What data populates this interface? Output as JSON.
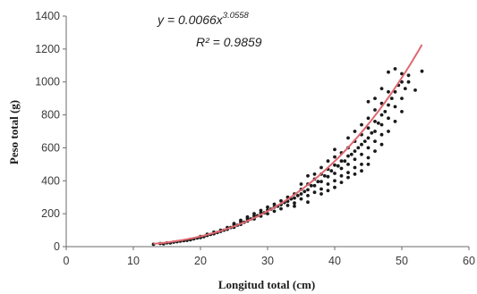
{
  "chart_data": {
    "type": "scatter",
    "xlabel": "Longitud total (cm)",
    "ylabel": "Peso total (g)",
    "xlim": [
      0,
      60
    ],
    "ylim": [
      0,
      1400
    ],
    "xticks": [
      "0",
      "10",
      "20",
      "30",
      "40",
      "50",
      "60"
    ],
    "yticks": [
      "0",
      "200",
      "400",
      "600",
      "800",
      "1000",
      "1200",
      "1400"
    ],
    "grid": false,
    "legend": "none",
    "annotations": {
      "equation_prefix": "y = 0.0066x",
      "equation_exponent": "3.0558",
      "r_squared": "R² = 0.9859"
    },
    "fit": {
      "type": "power",
      "a": 0.0066,
      "b": 3.0558,
      "x_range": [
        13,
        53
      ],
      "color": "#e06870"
    },
    "points_color": "#1a1a1a",
    "points": [
      [
        13,
        14
      ],
      [
        14,
        19
      ],
      [
        14.5,
        17
      ],
      [
        15,
        23
      ],
      [
        15.5,
        22
      ],
      [
        16,
        27
      ],
      [
        16.5,
        30
      ],
      [
        17,
        33
      ],
      [
        17.5,
        36
      ],
      [
        18,
        38
      ],
      [
        18.5,
        42
      ],
      [
        19,
        47
      ],
      [
        19.5,
        52
      ],
      [
        20,
        55
      ],
      [
        20,
        62
      ],
      [
        20.5,
        60
      ],
      [
        21,
        68
      ],
      [
        21,
        75
      ],
      [
        21.5,
        74
      ],
      [
        22,
        78
      ],
      [
        22,
        88
      ],
      [
        22.5,
        86
      ],
      [
        23,
        92
      ],
      [
        23,
        100
      ],
      [
        23.5,
        100
      ],
      [
        24,
        105
      ],
      [
        24,
        116
      ],
      [
        24.5,
        116
      ],
      [
        25,
        118
      ],
      [
        25,
        132
      ],
      [
        25,
        140
      ],
      [
        25.5,
        130
      ],
      [
        26,
        135
      ],
      [
        26,
        150
      ],
      [
        26,
        160
      ],
      [
        26.5,
        148
      ],
      [
        27,
        155
      ],
      [
        27,
        170
      ],
      [
        27,
        180
      ],
      [
        27.5,
        168
      ],
      [
        28,
        168
      ],
      [
        28,
        186
      ],
      [
        28,
        200
      ],
      [
        28.5,
        188
      ],
      [
        29,
        185
      ],
      [
        29,
        205
      ],
      [
        29,
        220
      ],
      [
        29.5,
        205
      ],
      [
        30,
        200
      ],
      [
        30,
        222
      ],
      [
        30,
        240
      ],
      [
        30.5,
        228
      ],
      [
        31,
        215
      ],
      [
        31,
        240
      ],
      [
        31,
        258
      ],
      [
        31.5,
        245
      ],
      [
        32,
        230
      ],
      [
        32,
        255
      ],
      [
        32,
        278
      ],
      [
        32.5,
        268
      ],
      [
        33,
        250
      ],
      [
        33,
        275
      ],
      [
        33,
        300
      ],
      [
        33.5,
        290
      ],
      [
        34,
        265
      ],
      [
        34,
        295
      ],
      [
        34,
        320
      ],
      [
        34,
        245
      ],
      [
        34.5,
        310
      ],
      [
        35,
        290
      ],
      [
        35,
        320
      ],
      [
        35,
        348
      ],
      [
        35,
        380
      ],
      [
        35.5,
        335
      ],
      [
        36,
        310
      ],
      [
        36,
        345
      ],
      [
        36,
        380
      ],
      [
        36,
        430
      ],
      [
        36,
        270
      ],
      [
        36.5,
        370
      ],
      [
        37,
        330
      ],
      [
        37,
        370
      ],
      [
        37,
        410
      ],
      [
        37,
        440
      ],
      [
        37.5,
        395
      ],
      [
        38,
        350
      ],
      [
        38,
        395
      ],
      [
        38,
        440
      ],
      [
        38,
        480
      ],
      [
        38,
        320
      ],
      [
        38.5,
        430
      ],
      [
        39,
        380
      ],
      [
        39,
        425
      ],
      [
        39,
        470
      ],
      [
        39,
        520
      ],
      [
        39,
        340
      ],
      [
        39.5,
        460
      ],
      [
        40,
        400
      ],
      [
        40,
        445
      ],
      [
        40,
        495
      ],
      [
        40,
        545
      ],
      [
        40,
        590
      ],
      [
        40,
        360
      ],
      [
        40.5,
        490
      ],
      [
        41,
        430
      ],
      [
        41,
        475
      ],
      [
        41,
        520
      ],
      [
        41,
        570
      ],
      [
        41,
        390
      ],
      [
        41.5,
        520
      ],
      [
        42,
        450
      ],
      [
        42,
        500
      ],
      [
        42,
        550
      ],
      [
        42,
        600
      ],
      [
        42,
        660
      ],
      [
        42,
        420
      ],
      [
        42.5,
        560
      ],
      [
        43,
        480
      ],
      [
        43,
        530
      ],
      [
        43,
        580
      ],
      [
        43,
        640
      ],
      [
        43,
        700
      ],
      [
        43,
        440
      ],
      [
        43.5,
        600
      ],
      [
        44,
        500
      ],
      [
        44,
        560
      ],
      [
        44,
        620
      ],
      [
        44,
        680
      ],
      [
        44,
        740
      ],
      [
        44,
        460
      ],
      [
        44.5,
        640
      ],
      [
        45,
        540
      ],
      [
        45,
        600
      ],
      [
        45,
        660
      ],
      [
        45,
        720
      ],
      [
        45,
        780
      ],
      [
        45,
        880
      ],
      [
        45,
        500
      ],
      [
        45.5,
        690
      ],
      [
        46,
        580
      ],
      [
        46,
        640
      ],
      [
        46,
        700
      ],
      [
        46,
        760
      ],
      [
        46,
        830
      ],
      [
        46,
        900
      ],
      [
        46.5,
        750
      ],
      [
        47,
        620
      ],
      [
        47,
        680
      ],
      [
        47,
        740
      ],
      [
        47,
        800
      ],
      [
        47,
        870
      ],
      [
        47,
        960
      ],
      [
        47.5,
        820
      ],
      [
        48,
        700
      ],
      [
        48,
        780
      ],
      [
        48,
        860
      ],
      [
        48,
        940
      ],
      [
        48,
        1060
      ],
      [
        48.5,
        900
      ],
      [
        49,
        760
      ],
      [
        49,
        850
      ],
      [
        49,
        940
      ],
      [
        49,
        1080
      ],
      [
        49.5,
        980
      ],
      [
        50,
        820
      ],
      [
        50,
        900
      ],
      [
        50,
        1000
      ],
      [
        50,
        1050
      ],
      [
        50.5,
        960
      ],
      [
        51,
        1000
      ],
      [
        51,
        1040
      ],
      [
        53,
        1065
      ],
      [
        52,
        950
      ]
    ]
  }
}
